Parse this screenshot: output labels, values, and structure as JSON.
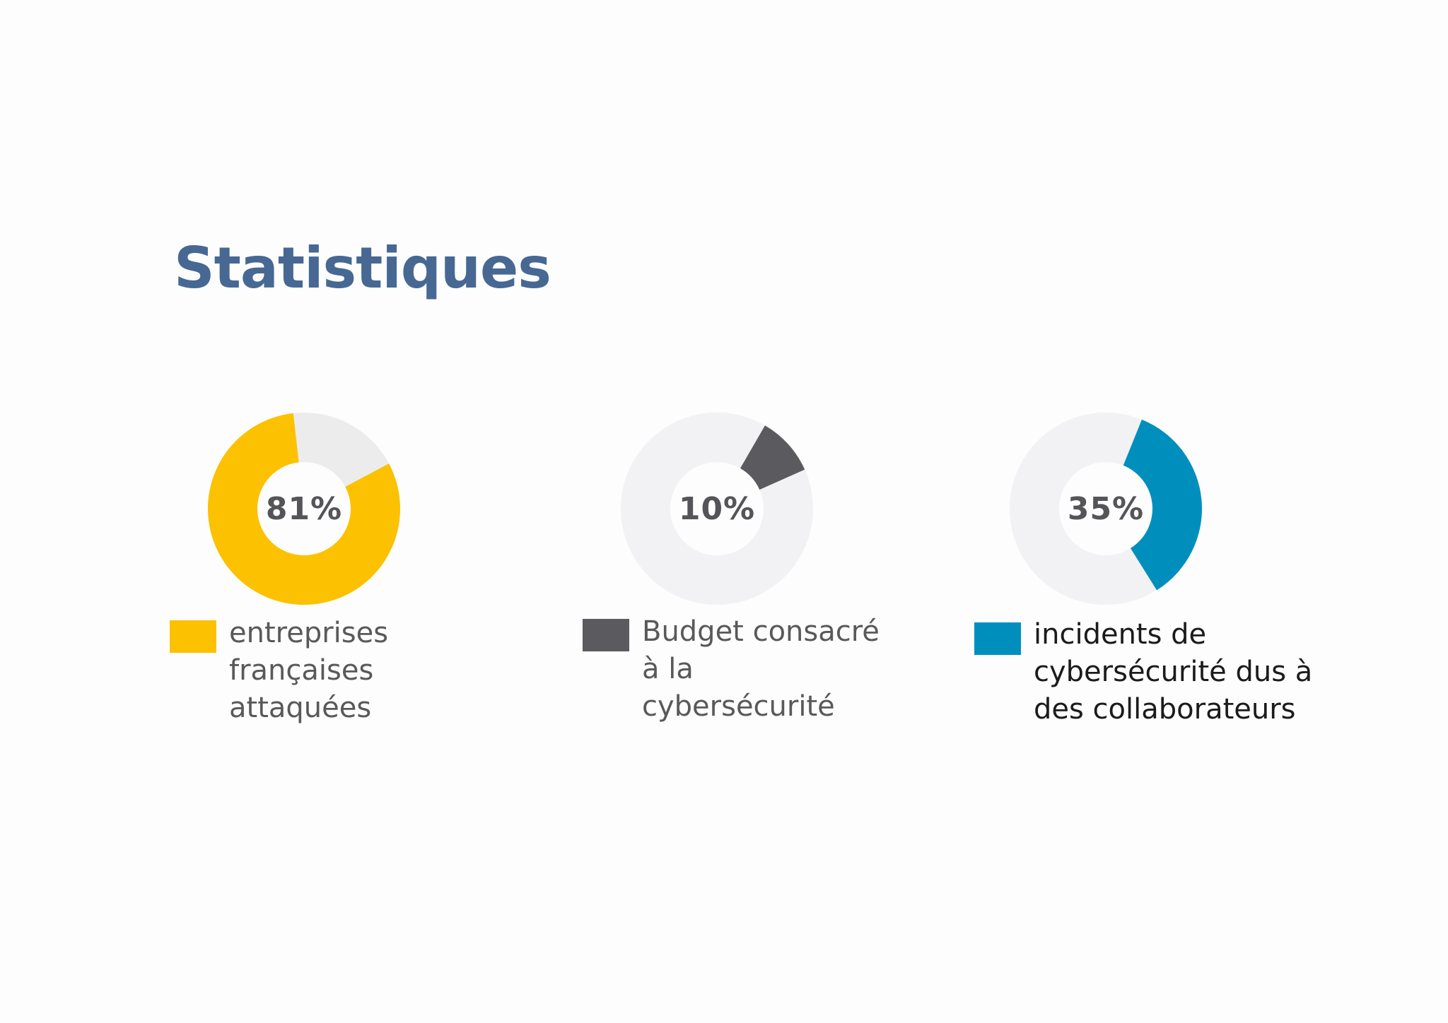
{
  "title": "Statistiques",
  "colors": {
    "title": "#466893",
    "track": "#f2f1f3",
    "track_alt": "#ececed",
    "label": "#595959",
    "label_dark": "#1b1b1b"
  },
  "stats": [
    {
      "pct_label": "81%",
      "legend_lines": [
        "entreprises",
        "françaises",
        "attaquées"
      ],
      "color": "#fcc100"
    },
    {
      "pct_label": "10%",
      "legend_lines": [
        "Budget consacré",
        "à la",
        "cybersécurité"
      ],
      "color": "#5b5a5e"
    },
    {
      "pct_label": "35%",
      "legend_lines": [
        "incidents de",
        "cybersécurité dus à",
        "des collaborateurs"
      ],
      "color": "#008fbc"
    }
  ],
  "chart_data": [
    {
      "type": "pie",
      "values": [
        81,
        19
      ],
      "categories": [
        "entreprises françaises attaquées",
        ""
      ]
    },
    {
      "type": "pie",
      "values": [
        10,
        90
      ],
      "categories": [
        "Budget consacré à la cybersécurité",
        ""
      ]
    },
    {
      "type": "pie",
      "values": [
        35,
        65
      ],
      "categories": [
        "incidents de cybersécurité dus à des collaborateurs",
        ""
      ]
    }
  ]
}
